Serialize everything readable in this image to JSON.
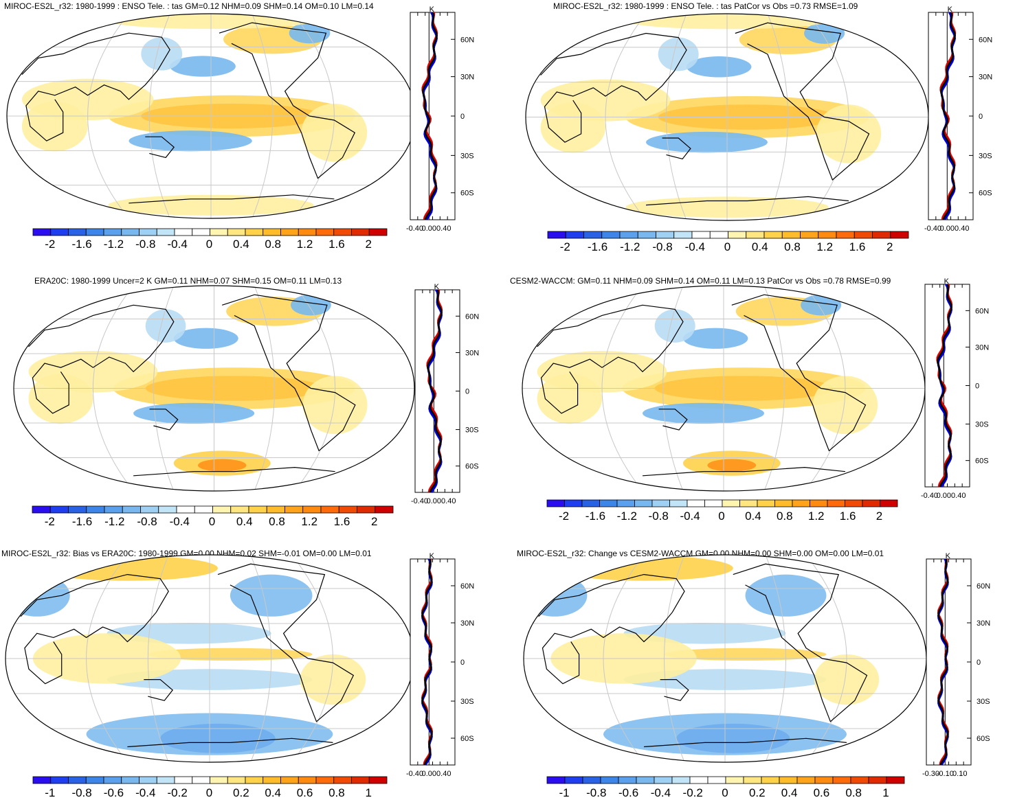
{
  "panels": [
    {
      "id": "top-left",
      "title": "MIROC-ES2L_r32: 1980-1999 : ENSO Tele. : tas GM=0.12 NHM=0.09 SHM=0.14 OM=0.10 LM=0.14",
      "colorbar_labels": [
        "-2",
        "-1.6",
        "-1.2",
        "-0.8",
        "-0.4",
        "0",
        "0.4",
        "0.8",
        "1.2",
        "1.6",
        "2"
      ],
      "zonal_unit": "K",
      "zonal_x_labels": [
        "-0.40",
        "0.00",
        "0.40"
      ],
      "zonal_y_labels": [
        "60N",
        "30N",
        "0",
        "30S",
        "60S"
      ]
    },
    {
      "id": "top-right",
      "title": "MIROC-ES2L_r32: 1980-1999 : ENSO Tele. : tas PatCor vs Obs =0.73 RMSE=1.09",
      "colorbar_labels": [
        "-2",
        "-1.6",
        "-1.2",
        "-0.8",
        "-0.4",
        "0",
        "0.4",
        "0.8",
        "1.2",
        "1.6",
        "2"
      ],
      "zonal_unit": "K",
      "zonal_x_labels": [
        "-0.40",
        "0.00",
        "0.40"
      ],
      "zonal_y_labels": [
        "60N",
        "30N",
        "0",
        "30S",
        "60S"
      ]
    },
    {
      "id": "mid-left",
      "title": "ERA20C: 1980-1999 Uncer=2 K GM=0.11 NHM=0.07 SHM=0.15 OM=0.11 LM=0.13",
      "colorbar_labels": [
        "-2",
        "-1.6",
        "-1.2",
        "-0.8",
        "-0.4",
        "0",
        "0.4",
        "0.8",
        "1.2",
        "1.6",
        "2"
      ],
      "zonal_unit": "K",
      "zonal_x_labels": [
        "-0.40",
        "0.00",
        "0.40"
      ],
      "zonal_y_labels": [
        "60N",
        "30N",
        "0",
        "30S",
        "60S"
      ]
    },
    {
      "id": "mid-right",
      "title": "CESM2-WACCM: GM=0.11 NHM=0.09 SHM=0.14 OM=0.11 LM=0.13 PatCor vs Obs =0.78 RMSE=0.99",
      "colorbar_labels": [
        "-2",
        "-1.6",
        "-1.2",
        "-0.8",
        "-0.4",
        "0",
        "0.4",
        "0.8",
        "1.2",
        "1.6",
        "2"
      ],
      "zonal_unit": "K",
      "zonal_x_labels": [
        "-0.40",
        "0.00",
        "0.40"
      ],
      "zonal_y_labels": [
        "60N",
        "30N",
        "0",
        "30S",
        "60S"
      ]
    },
    {
      "id": "bottom-left",
      "title": "MIROC-ES2L_r32: Bias vs ERA20C: 1980-1999 GM=0.00 NHM=0.02 SHM=-0.01 OM=0.00 LM=0.01",
      "colorbar_labels": [
        "-1",
        "-0.8",
        "-0.6",
        "-0.4",
        "-0.2",
        "0",
        "0.2",
        "0.4",
        "0.6",
        "0.8",
        "1"
      ],
      "zonal_unit": "K",
      "zonal_x_labels": [
        "-0.40",
        "0.00",
        "0.40"
      ],
      "zonal_y_labels": [
        "60N",
        "30N",
        "0",
        "30S",
        "60S"
      ]
    },
    {
      "id": "bottom-right",
      "title": "MIROC-ES2L_r32: Change vs CESM2-WACCM GM=0.00 NHM=0.00 SHM=0.00 OM=0.00 LM=0.01",
      "colorbar_labels": [
        "-1",
        "-0.8",
        "-0.6",
        "-0.4",
        "-0.2",
        "0",
        "0.2",
        "0.4",
        "0.6",
        "0.8",
        "1"
      ],
      "zonal_unit": "K",
      "zonal_x_labels": [
        "-0.30",
        "-0.10",
        "0.10"
      ],
      "zonal_y_labels": [
        "60N",
        "30N",
        "0",
        "30S",
        "60S"
      ]
    }
  ],
  "colors": {
    "colorbar": [
      "#2a0ef0",
      "#1f3ef0",
      "#2a62e6",
      "#3d85e8",
      "#5aa0ec",
      "#78b8ee",
      "#9dd0f2",
      "#c1e4f7",
      "#ffffff",
      "#ffffff",
      "#fff4b0",
      "#ffe680",
      "#ffd24a",
      "#ffbc2a",
      "#ffa31a",
      "#ff8a10",
      "#ff6a0a",
      "#f04a05",
      "#e02a02",
      "#d00000"
    ],
    "warm": "#ffd24a",
    "warm_light": "#fff0a0",
    "hot": "#ff8a10",
    "cool": "#78b8ee",
    "cool_light": "#b8dcf4",
    "deep_cool": "#2a62e6",
    "series_model": "#e00000",
    "series_obs": "#0000e0",
    "series_all": "#000000"
  }
}
